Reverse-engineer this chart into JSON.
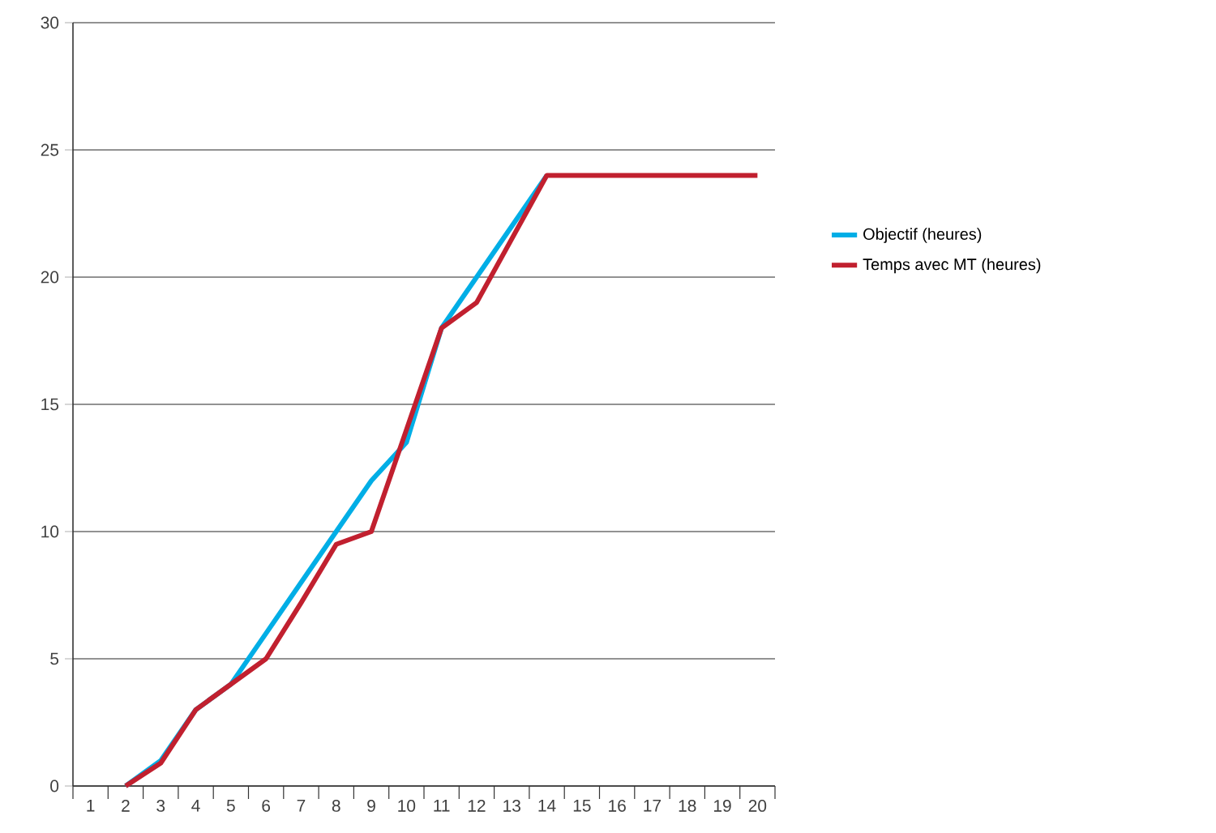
{
  "chart_data": {
    "type": "line",
    "categories": [
      "1",
      "2",
      "3",
      "4",
      "5",
      "6",
      "7",
      "8",
      "9",
      "10",
      "11",
      "12",
      "13",
      "14",
      "15",
      "16",
      "17",
      "18",
      "19",
      "20"
    ],
    "series": [
      {
        "name": "Objectif (heures)",
        "color": "#00aee6",
        "values": [
          null,
          0,
          1,
          3,
          4,
          6,
          8,
          10,
          12,
          13.5,
          18,
          20,
          22,
          24,
          null,
          null,
          null,
          null,
          null,
          null
        ]
      },
      {
        "name": "Temps avec MT (heures)",
        "color": "#c1202f",
        "values": [
          null,
          0,
          0.9,
          3,
          4,
          5,
          7.2,
          9.5,
          10,
          14,
          18,
          19,
          21.5,
          24,
          24,
          24,
          24,
          24,
          24,
          24
        ]
      }
    ],
    "ylim": [
      0,
      30
    ],
    "yticks": [
      0,
      5,
      10,
      15,
      20,
      25,
      30
    ],
    "grid": "y",
    "legend": "right",
    "marker": "none",
    "line_style": "solid"
  }
}
